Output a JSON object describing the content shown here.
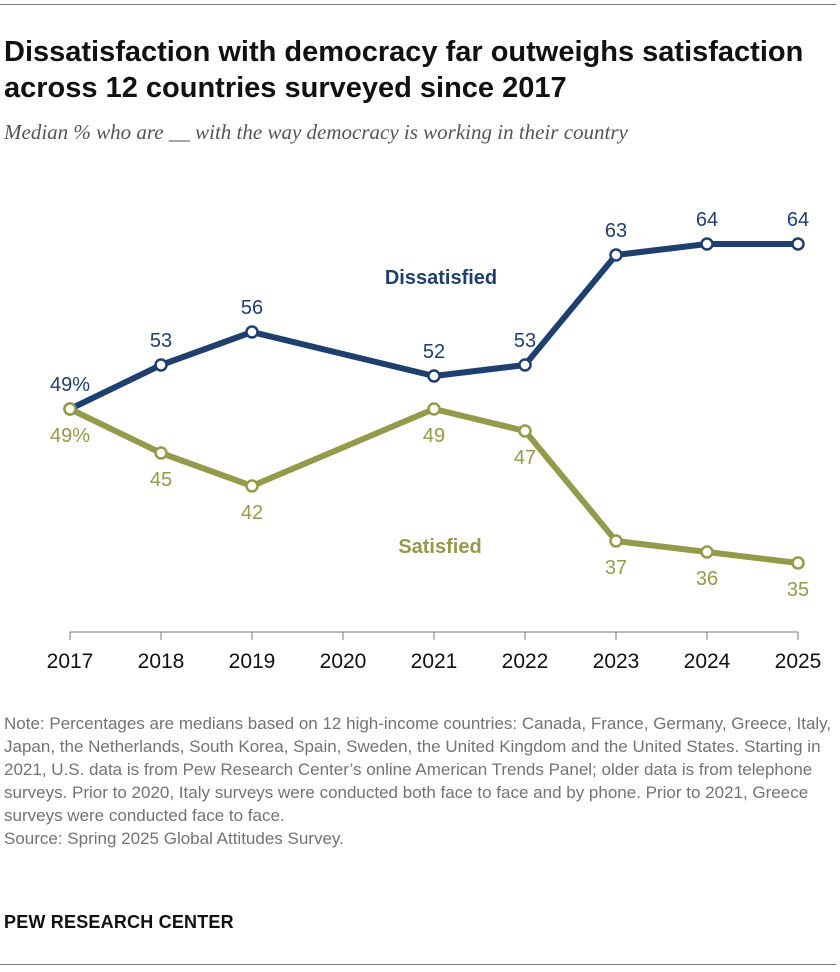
{
  "title": "Dissatisfaction with democracy far outweighs satisfaction across 12 countries surveyed since 2017",
  "subtitle": "Median % who are __ with the way democracy is working in their country",
  "note_lines": [
    "Note: Percentages are medians based on 12 high-income countries: Canada, France, Germany, Greece, Italy, Japan, the Netherlands, South Korea, Spain, Sweden, the United Kingdom and the United States. Starting in 2021, U.S. data is from Pew Research Center’s online American Trends Panel; older data is from telephone surveys. Prior to 2020, Italy surveys were conducted both face to face and by phone. Prior to 2021, Greece surveys were conducted face to face.",
    "Source: Spring 2025 Global Attitudes Survey."
  ],
  "brand": "PEW RESEARCH CENTER",
  "chart_data": {
    "type": "line",
    "x": [
      2017,
      2018,
      2019,
      2021,
      2022,
      2023,
      2024,
      2025
    ],
    "x_ticks": [
      "2017",
      "2018",
      "2019",
      "2020",
      "2021",
      "2022",
      "2023",
      "2024",
      "2025"
    ],
    "xlim": [
      2017,
      2025
    ],
    "ylim": [
      30,
      70
    ],
    "grid": false,
    "series": [
      {
        "name": "Dissatisfied",
        "color": "#1f3f6e",
        "values": [
          49,
          53,
          56,
          52,
          53,
          63,
          64,
          64
        ],
        "labels": [
          "49%",
          "53",
          "56",
          "52",
          "53",
          "63",
          "64",
          "64"
        ],
        "label_position": "above"
      },
      {
        "name": "Satisfied",
        "color": "#939b4a",
        "values": [
          49,
          45,
          42,
          49,
          47,
          37,
          36,
          35
        ],
        "labels": [
          "49%",
          "45",
          "42",
          "49",
          "47",
          "37",
          "36",
          "35"
        ],
        "label_position": "below"
      }
    ]
  }
}
